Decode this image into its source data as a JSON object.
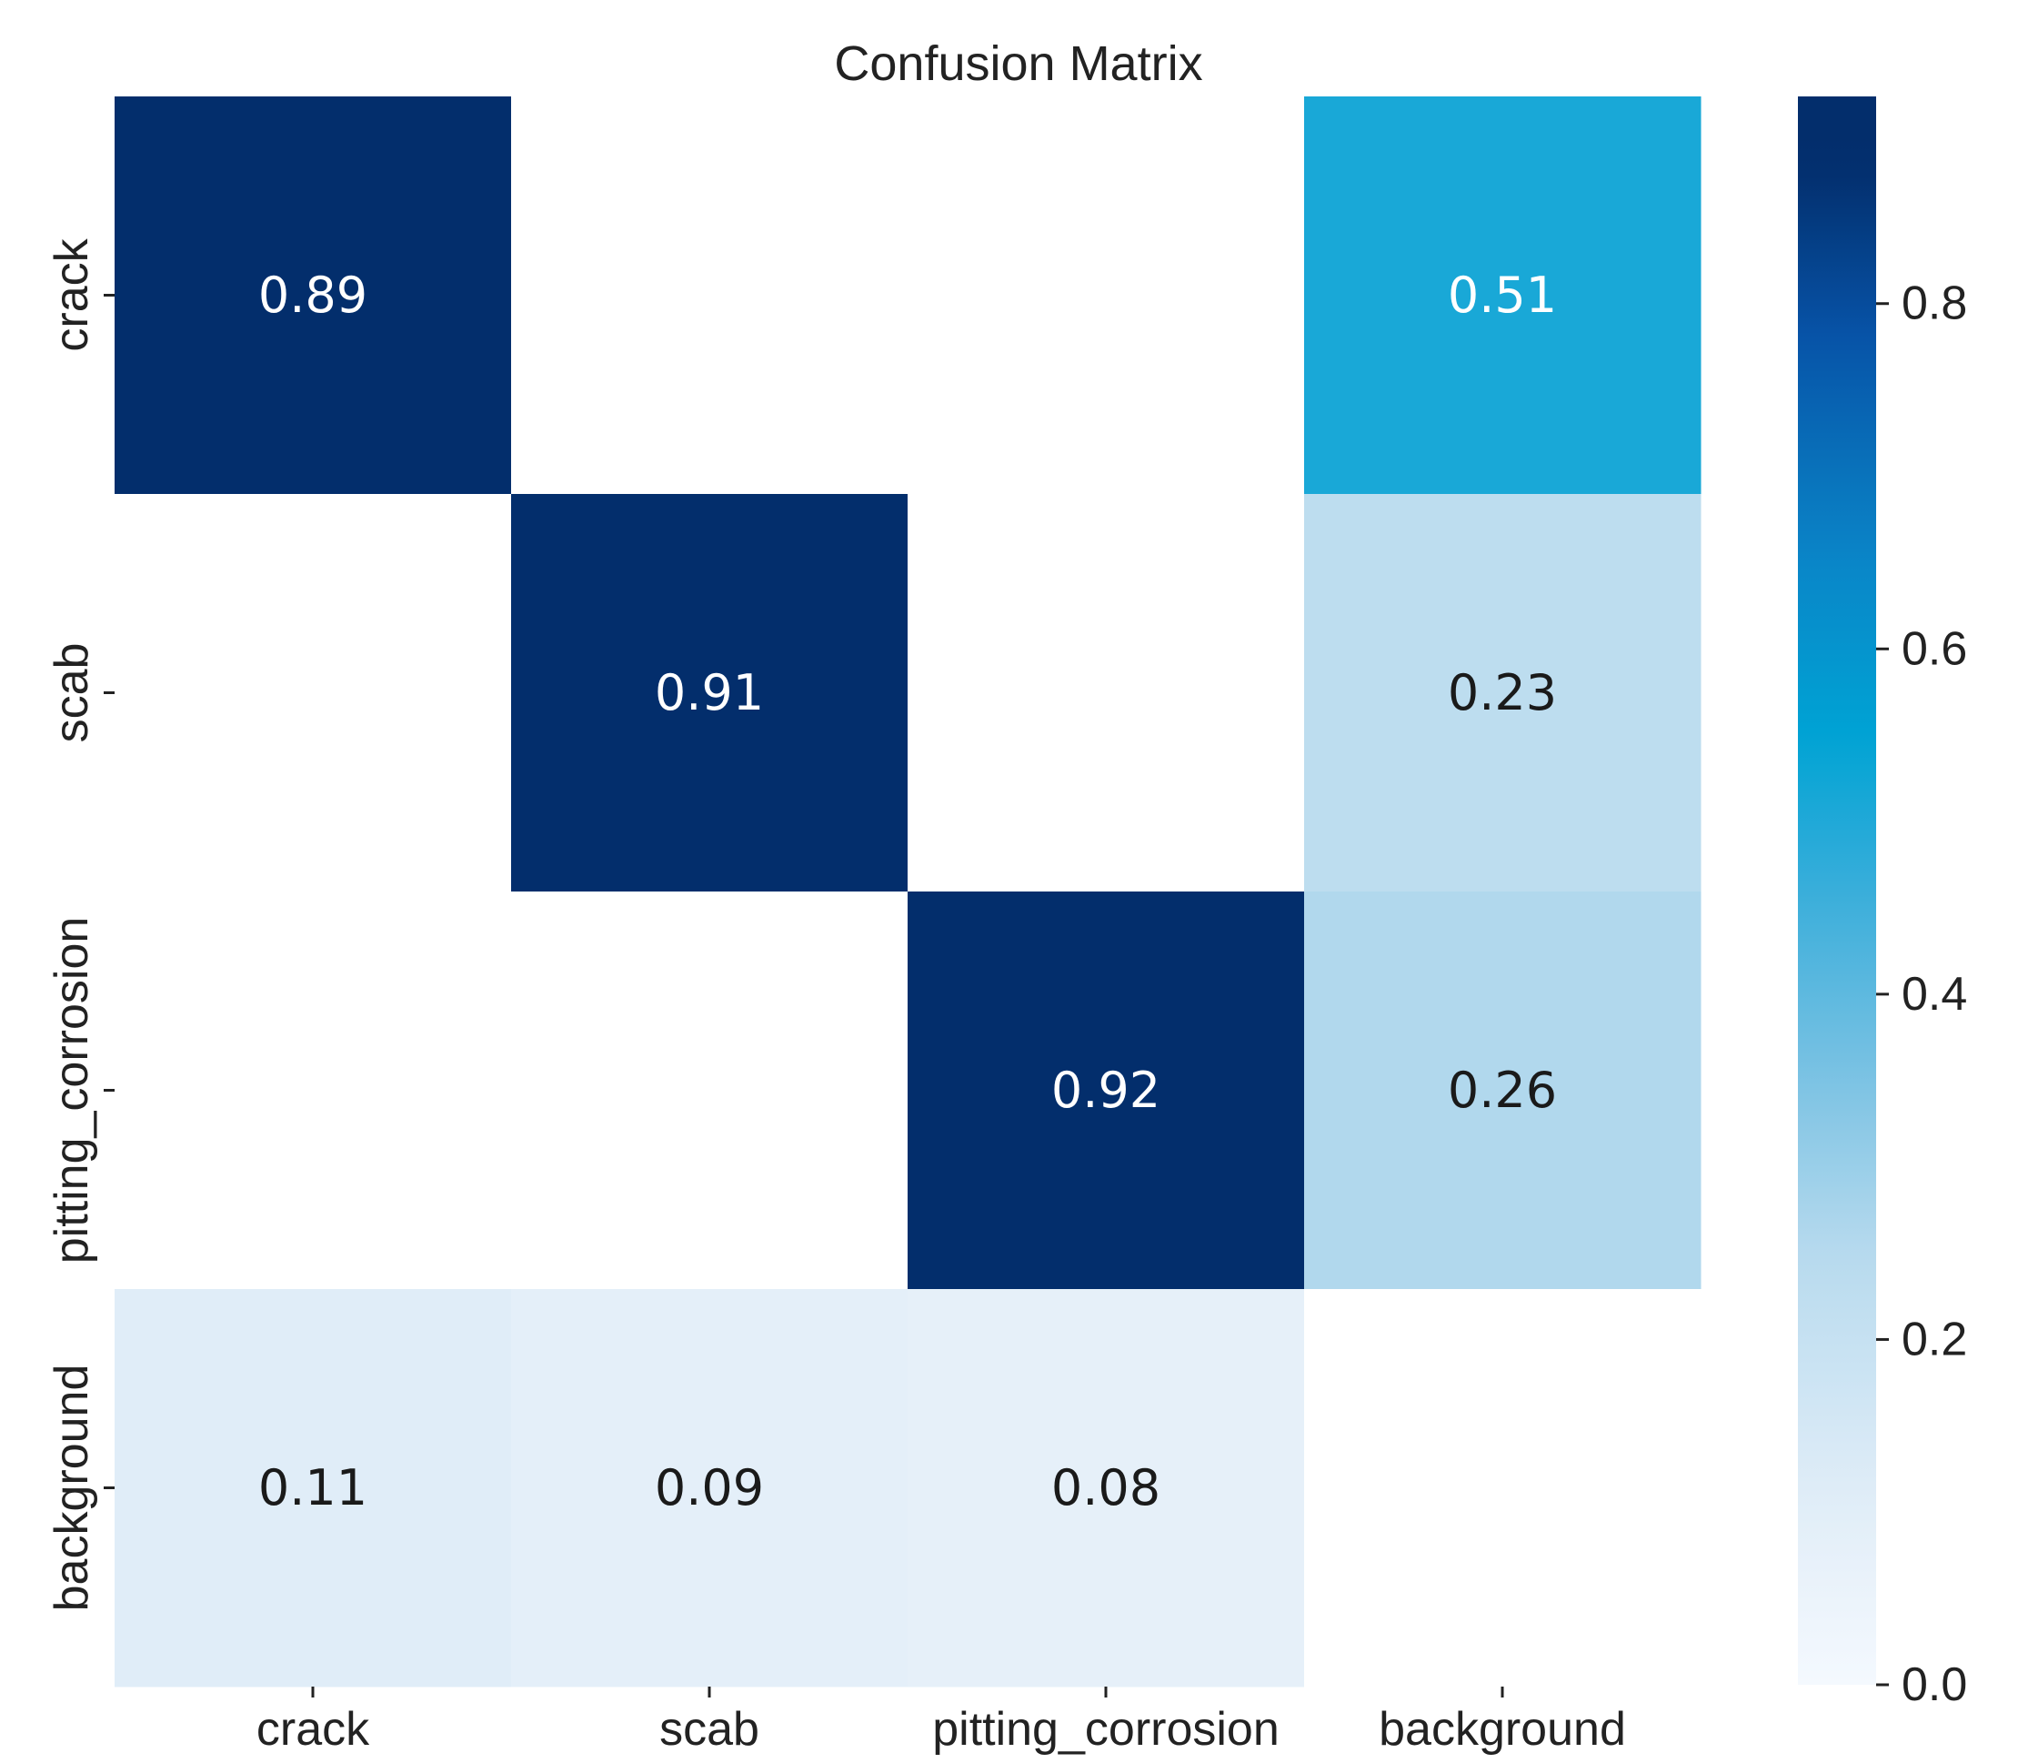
{
  "chart_data": {
    "type": "heatmap",
    "title": "Confusion Matrix",
    "x_labels": [
      "crack",
      "scab",
      "pitting_corrosion",
      "background"
    ],
    "y_labels": [
      "crack",
      "scab",
      "pitting_corrosion",
      "background"
    ],
    "values": [
      [
        0.89,
        null,
        null,
        0.51
      ],
      [
        null,
        0.91,
        null,
        0.23
      ],
      [
        null,
        null,
        0.92,
        0.26
      ],
      [
        0.11,
        0.09,
        0.08,
        null
      ]
    ],
    "colorbar": {
      "min": 0.0,
      "max": 0.92,
      "ticks": [
        0.0,
        0.2,
        0.4,
        0.6,
        0.8
      ],
      "tick_labels": [
        "0.0",
        "0.2",
        "0.4",
        "0.6",
        "0.8"
      ]
    },
    "colormap": {
      "name": "custom-blues",
      "stops": [
        [
          0.0,
          "#f4f9fe"
        ],
        [
          0.1,
          "#e2eef8"
        ],
        [
          0.12,
          "#ddebf7"
        ],
        [
          0.25,
          "#b7daee"
        ],
        [
          0.35,
          "#7cc3e3"
        ],
        [
          0.45,
          "#3fafdb"
        ],
        [
          0.55,
          "#00a3d4"
        ],
        [
          0.65,
          "#0a86c8"
        ],
        [
          0.78,
          "#0754a8"
        ],
        [
          0.88,
          "#032e6c"
        ],
        [
          0.92,
          "#032e6c"
        ]
      ]
    },
    "empty_color": "#ffffff"
  }
}
